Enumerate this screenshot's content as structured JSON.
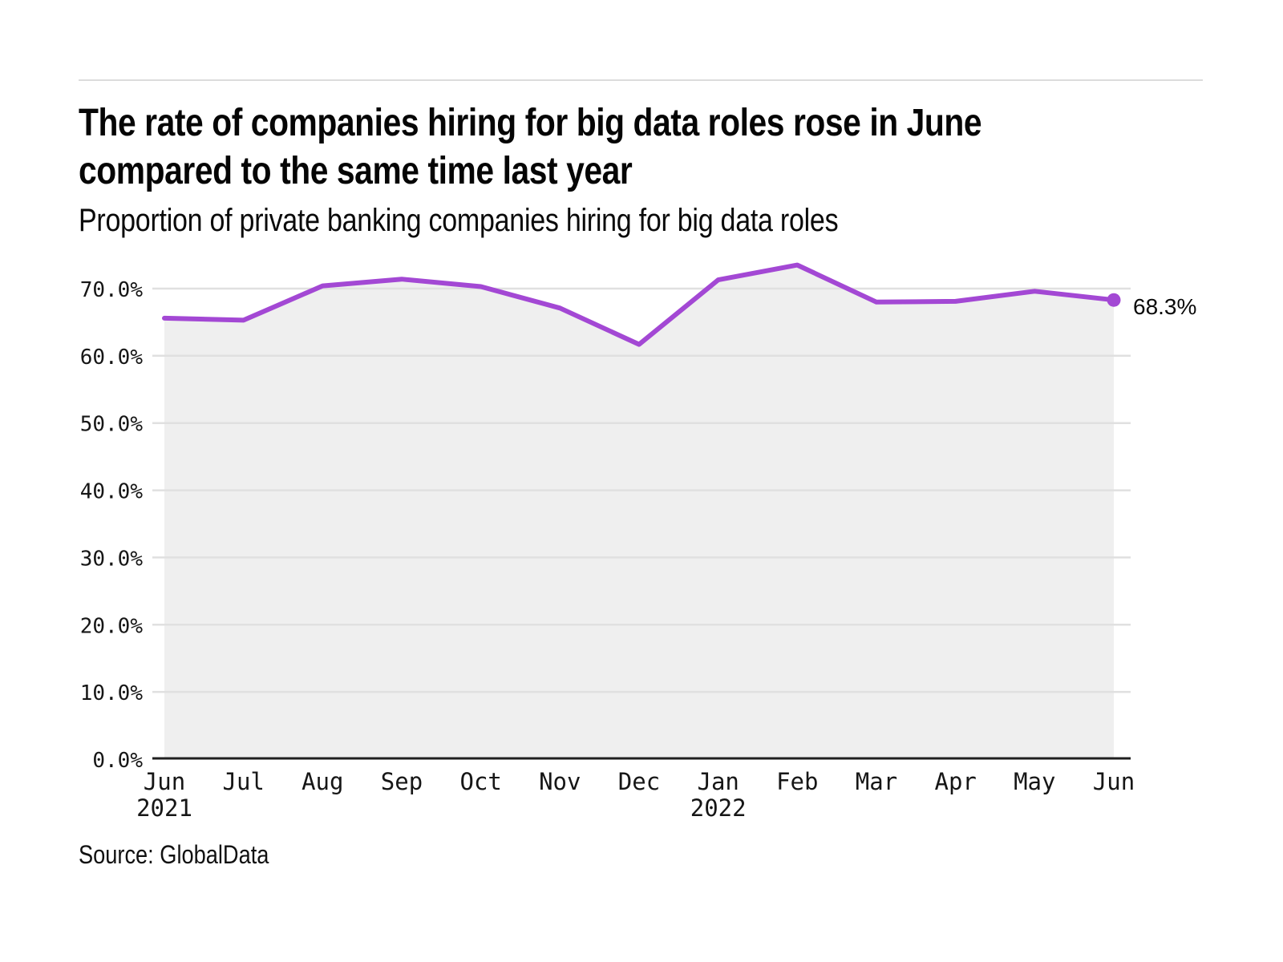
{
  "page": {
    "title": "The rate of companies hiring for big data roles rose in June compared to the same time last year",
    "subtitle": "Proportion of private banking companies hiring for big data roles",
    "source": "Source: GlobalData"
  },
  "chart_data": {
    "type": "area",
    "title": "The rate of companies hiring for big data roles rose in June compared to the same time last year",
    "subtitle": "Proportion of private banking companies hiring for big data roles",
    "x": [
      "Jun 2021",
      "Jul 2021",
      "Aug 2021",
      "Sep 2021",
      "Oct 2021",
      "Nov 2021",
      "Dec 2021",
      "Jan 2022",
      "Feb 2022",
      "Mar 2022",
      "Apr 2022",
      "May 2022",
      "Jun 2022"
    ],
    "x_tick_labels": [
      "Jun",
      "Jul",
      "Aug",
      "Sep",
      "Oct",
      "Nov",
      "Dec",
      "Jan",
      "Feb",
      "Mar",
      "Apr",
      "May",
      "Jun"
    ],
    "x_tick_sublabels": [
      "2021",
      "",
      "",
      "",
      "",
      "",
      "",
      "2022",
      "",
      "",
      "",
      "",
      ""
    ],
    "series": [
      {
        "name": "Proportion of private banking companies hiring for big data roles",
        "values": [
          65.6,
          65.3,
          70.4,
          71.4,
          70.3,
          67.1,
          61.7,
          71.3,
          73.5,
          68.0,
          68.1,
          69.6,
          68.3
        ]
      }
    ],
    "end_label": "68.3%",
    "xlabel": "",
    "ylabel": "",
    "ylim": [
      0,
      75
    ],
    "yticks": [
      0,
      10,
      20,
      30,
      40,
      50,
      60,
      70
    ],
    "ytick_suffix": ".0%",
    "grid": "horizontal",
    "legend": "none",
    "colors": {
      "line": "#a348d4",
      "area_fill": "#efefef",
      "gridline": "#e0e0e0",
      "axis_line": "#1f1f1f",
      "tick_text": "#161616"
    }
  }
}
